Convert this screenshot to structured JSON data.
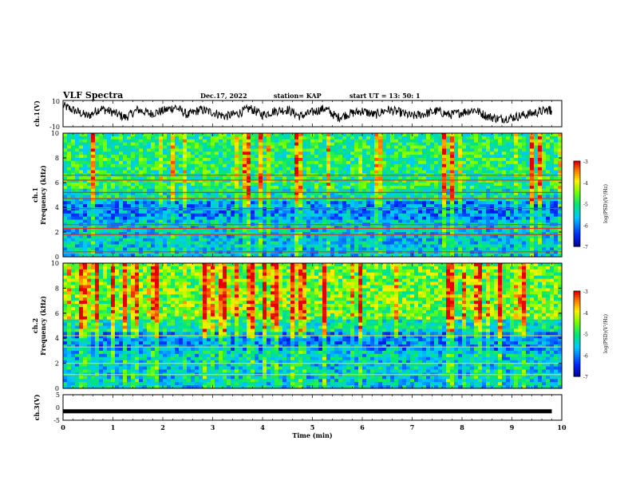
{
  "header": {
    "title": "VLF Spectra",
    "date": "Dec.17, 2022",
    "station": "station= KAP",
    "start": "start  UT =   13: 50: 1"
  },
  "chart_data": [
    {
      "type": "line",
      "panel": "ch1-waveform",
      "ylabel": "ch.1(V)",
      "ylim": [
        -10,
        10
      ],
      "yticks": [
        "10",
        "-10"
      ],
      "xlim": [
        0,
        10
      ],
      "x": [
        0,
        0.25,
        0.5,
        0.75,
        1.0,
        1.25,
        1.5,
        1.75,
        2.0,
        2.25,
        2.5,
        2.75,
        3.0,
        3.25,
        3.5,
        3.75,
        4.0,
        4.25,
        4.5,
        4.75,
        5.0,
        5.25,
        5.5,
        5.75,
        6.0,
        6.25,
        6.5,
        6.75,
        7.0,
        7.25,
        7.5,
        7.75,
        8.0,
        8.25,
        8.5,
        8.75,
        9.0,
        9.25,
        9.5,
        9.75,
        9.8
      ],
      "y": [
        6,
        2,
        -2,
        4,
        1,
        -3,
        3,
        0,
        2,
        5,
        -1,
        3,
        1,
        -2,
        0,
        4,
        -1,
        2,
        3,
        -2,
        1,
        4,
        -3,
        0,
        2,
        -1,
        3,
        1,
        -2,
        0,
        2,
        -1,
        1,
        3,
        -2,
        -4,
        -3,
        -1,
        1,
        3,
        2
      ]
    },
    {
      "type": "heatmap",
      "panel": "ch1-spectrogram",
      "ylabel": "ch.1\nFrequency (kHz)",
      "ylim": [
        0,
        10
      ],
      "yticks": [
        "0",
        "2",
        "4",
        "6",
        "8",
        "10"
      ],
      "xlim": [
        0,
        10
      ],
      "colorbar": {
        "label": "log(PSD)(V²/Hz)",
        "range": [
          -7,
          -3
        ],
        "ticks": [
          "-3",
          "-4",
          "-5",
          "-6",
          "-7"
        ]
      }
    },
    {
      "type": "heatmap",
      "panel": "ch2-spectrogram",
      "ylabel": "ch.2\nFrequency (kHz)",
      "ylim": [
        0,
        10
      ],
      "yticks": [
        "0",
        "2",
        "4",
        "6",
        "8",
        "10"
      ],
      "xlim": [
        0,
        10
      ],
      "colorbar": {
        "label": "log(PSD)(V²/Hz)",
        "range": [
          -7,
          -3
        ],
        "ticks": [
          "-3",
          "-4",
          "-5",
          "-6",
          "-7"
        ]
      }
    },
    {
      "type": "line",
      "panel": "ch3-waveform",
      "ylabel": "ch.3(V)",
      "ylim": [
        -5,
        5
      ],
      "yticks": [
        "5",
        "0",
        "-5"
      ],
      "xlim": [
        0,
        10
      ],
      "x": [
        0,
        9.8
      ],
      "y": [
        -1.5,
        -1.5
      ]
    }
  ],
  "xaxis": {
    "label": "Time (min)",
    "ticks": [
      "0",
      "1",
      "2",
      "3",
      "4",
      "5",
      "6",
      "7",
      "8",
      "9",
      "10"
    ]
  }
}
